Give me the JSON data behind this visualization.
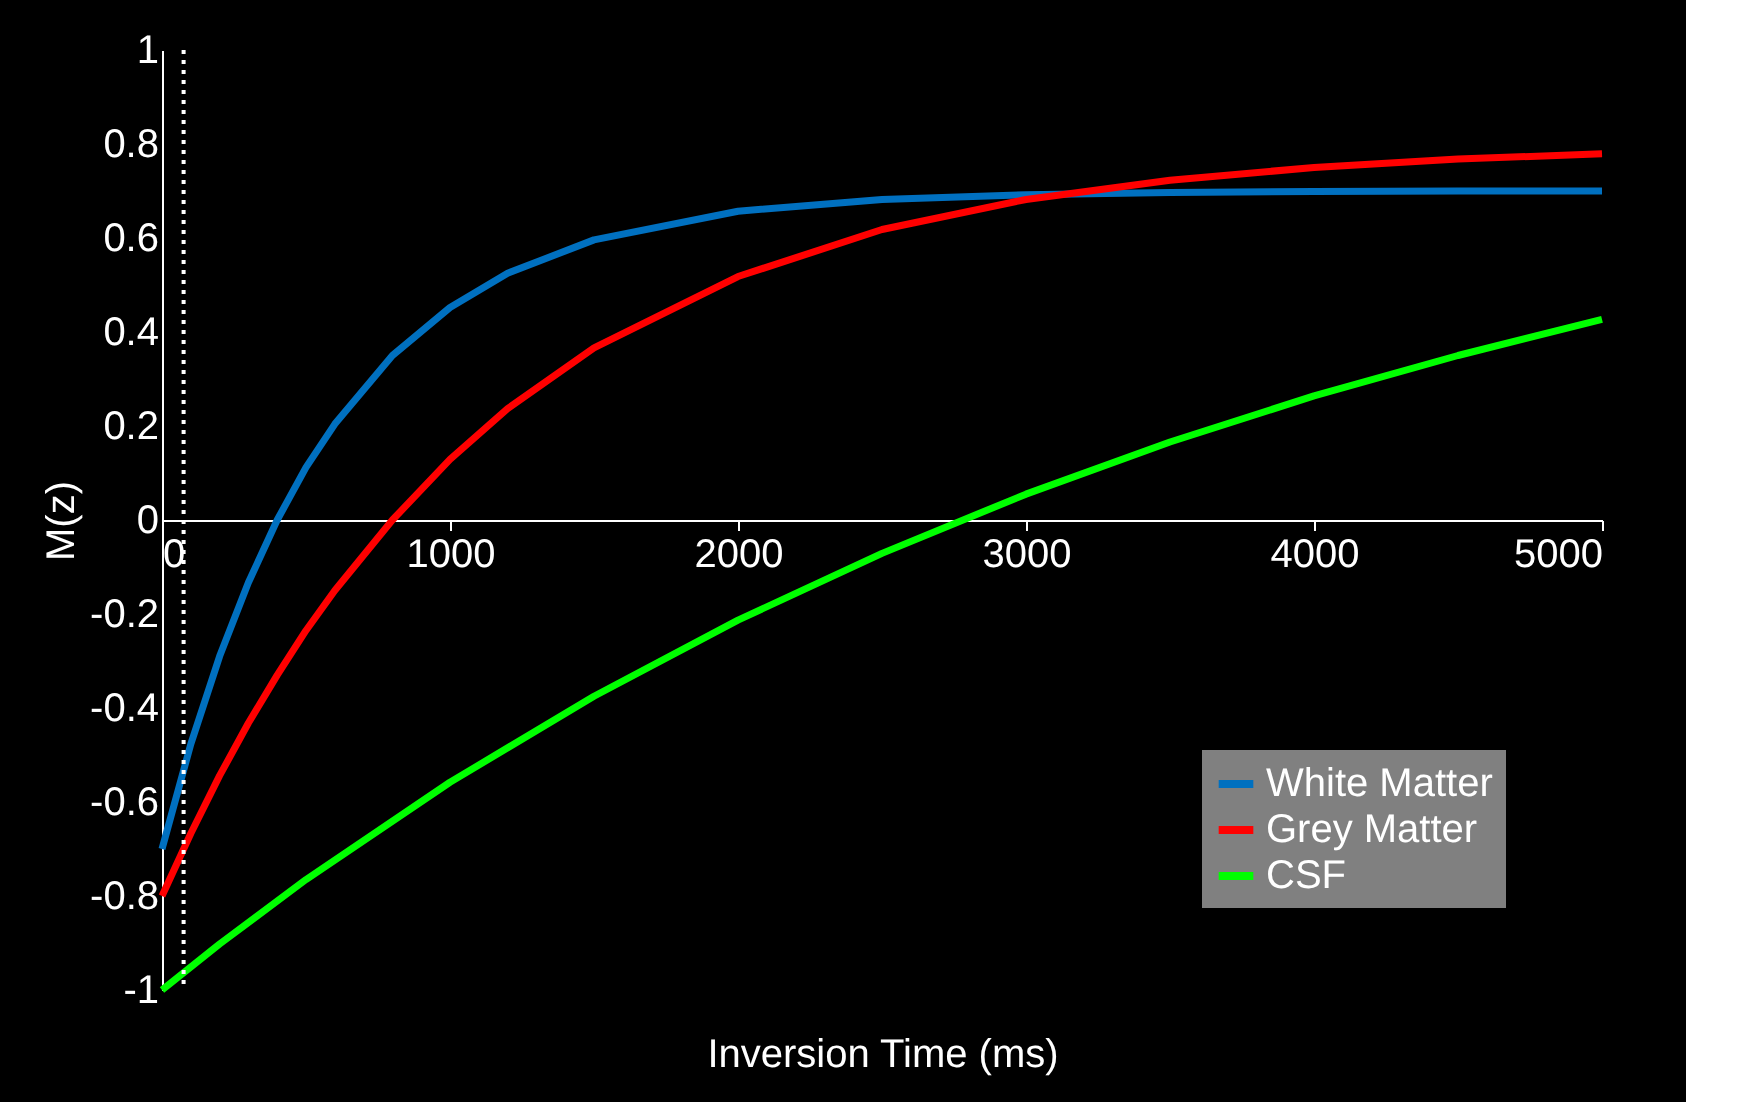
{
  "chart_data": {
    "type": "line",
    "xlabel": "Inversion Time (ms)",
    "ylabel": "M(z)",
    "xlim": [
      0,
      5000
    ],
    "xticks": [
      0,
      1000,
      2000,
      3000,
      4000,
      5000
    ],
    "ylim": [
      -1,
      1
    ],
    "yticks": [
      -1,
      -0.8,
      -0.6,
      -0.4,
      -0.2,
      0,
      0.2,
      0.4,
      0.6,
      0.8,
      1
    ],
    "grid": false,
    "legend": "bottom right",
    "marker": "none",
    "line_style": "solid",
    "ref_lines": [
      {
        "axis": "x",
        "value": 75,
        "color": "#ffffff",
        "line_style": "dotted"
      }
    ],
    "series": [
      {
        "name": "White Matter",
        "color": "#0070c0",
        "x": [
          0,
          100,
          200,
          300,
          400,
          500,
          600,
          800,
          1000,
          1200,
          1500,
          2000,
          2500,
          3000,
          3500,
          4000,
          4500,
          5000
        ],
        "values": [
          -0.7,
          -0.477,
          -0.29,
          -0.133,
          0.0,
          0.112,
          0.204,
          0.35,
          0.452,
          0.525,
          0.596,
          0.657,
          0.682,
          0.692,
          0.697,
          0.699,
          0.7,
          0.7
        ]
      },
      {
        "name": "Grey Matter",
        "color": "#ff0000",
        "x": [
          0,
          100,
          200,
          300,
          400,
          500,
          600,
          800,
          1000,
          1200,
          1500,
          2000,
          2500,
          3000,
          3500,
          4000,
          4500,
          5000
        ],
        "values": [
          -0.8,
          -0.667,
          -0.544,
          -0.432,
          -0.33,
          -0.235,
          -0.15,
          0.0,
          0.129,
          0.237,
          0.366,
          0.518,
          0.618,
          0.682,
          0.723,
          0.75,
          0.768,
          0.779
        ]
      },
      {
        "name": "CSF",
        "color": "#00ff00",
        "x": [
          0,
          200,
          500,
          1000,
          1500,
          2000,
          2500,
          3000,
          3500,
          4000,
          4500,
          5000
        ],
        "values": [
          -1,
          -0.902,
          -0.765,
          -0.558,
          -0.375,
          -0.213,
          -0.071,
          0.055,
          0.166,
          0.264,
          0.35,
          0.427
        ]
      }
    ]
  }
}
